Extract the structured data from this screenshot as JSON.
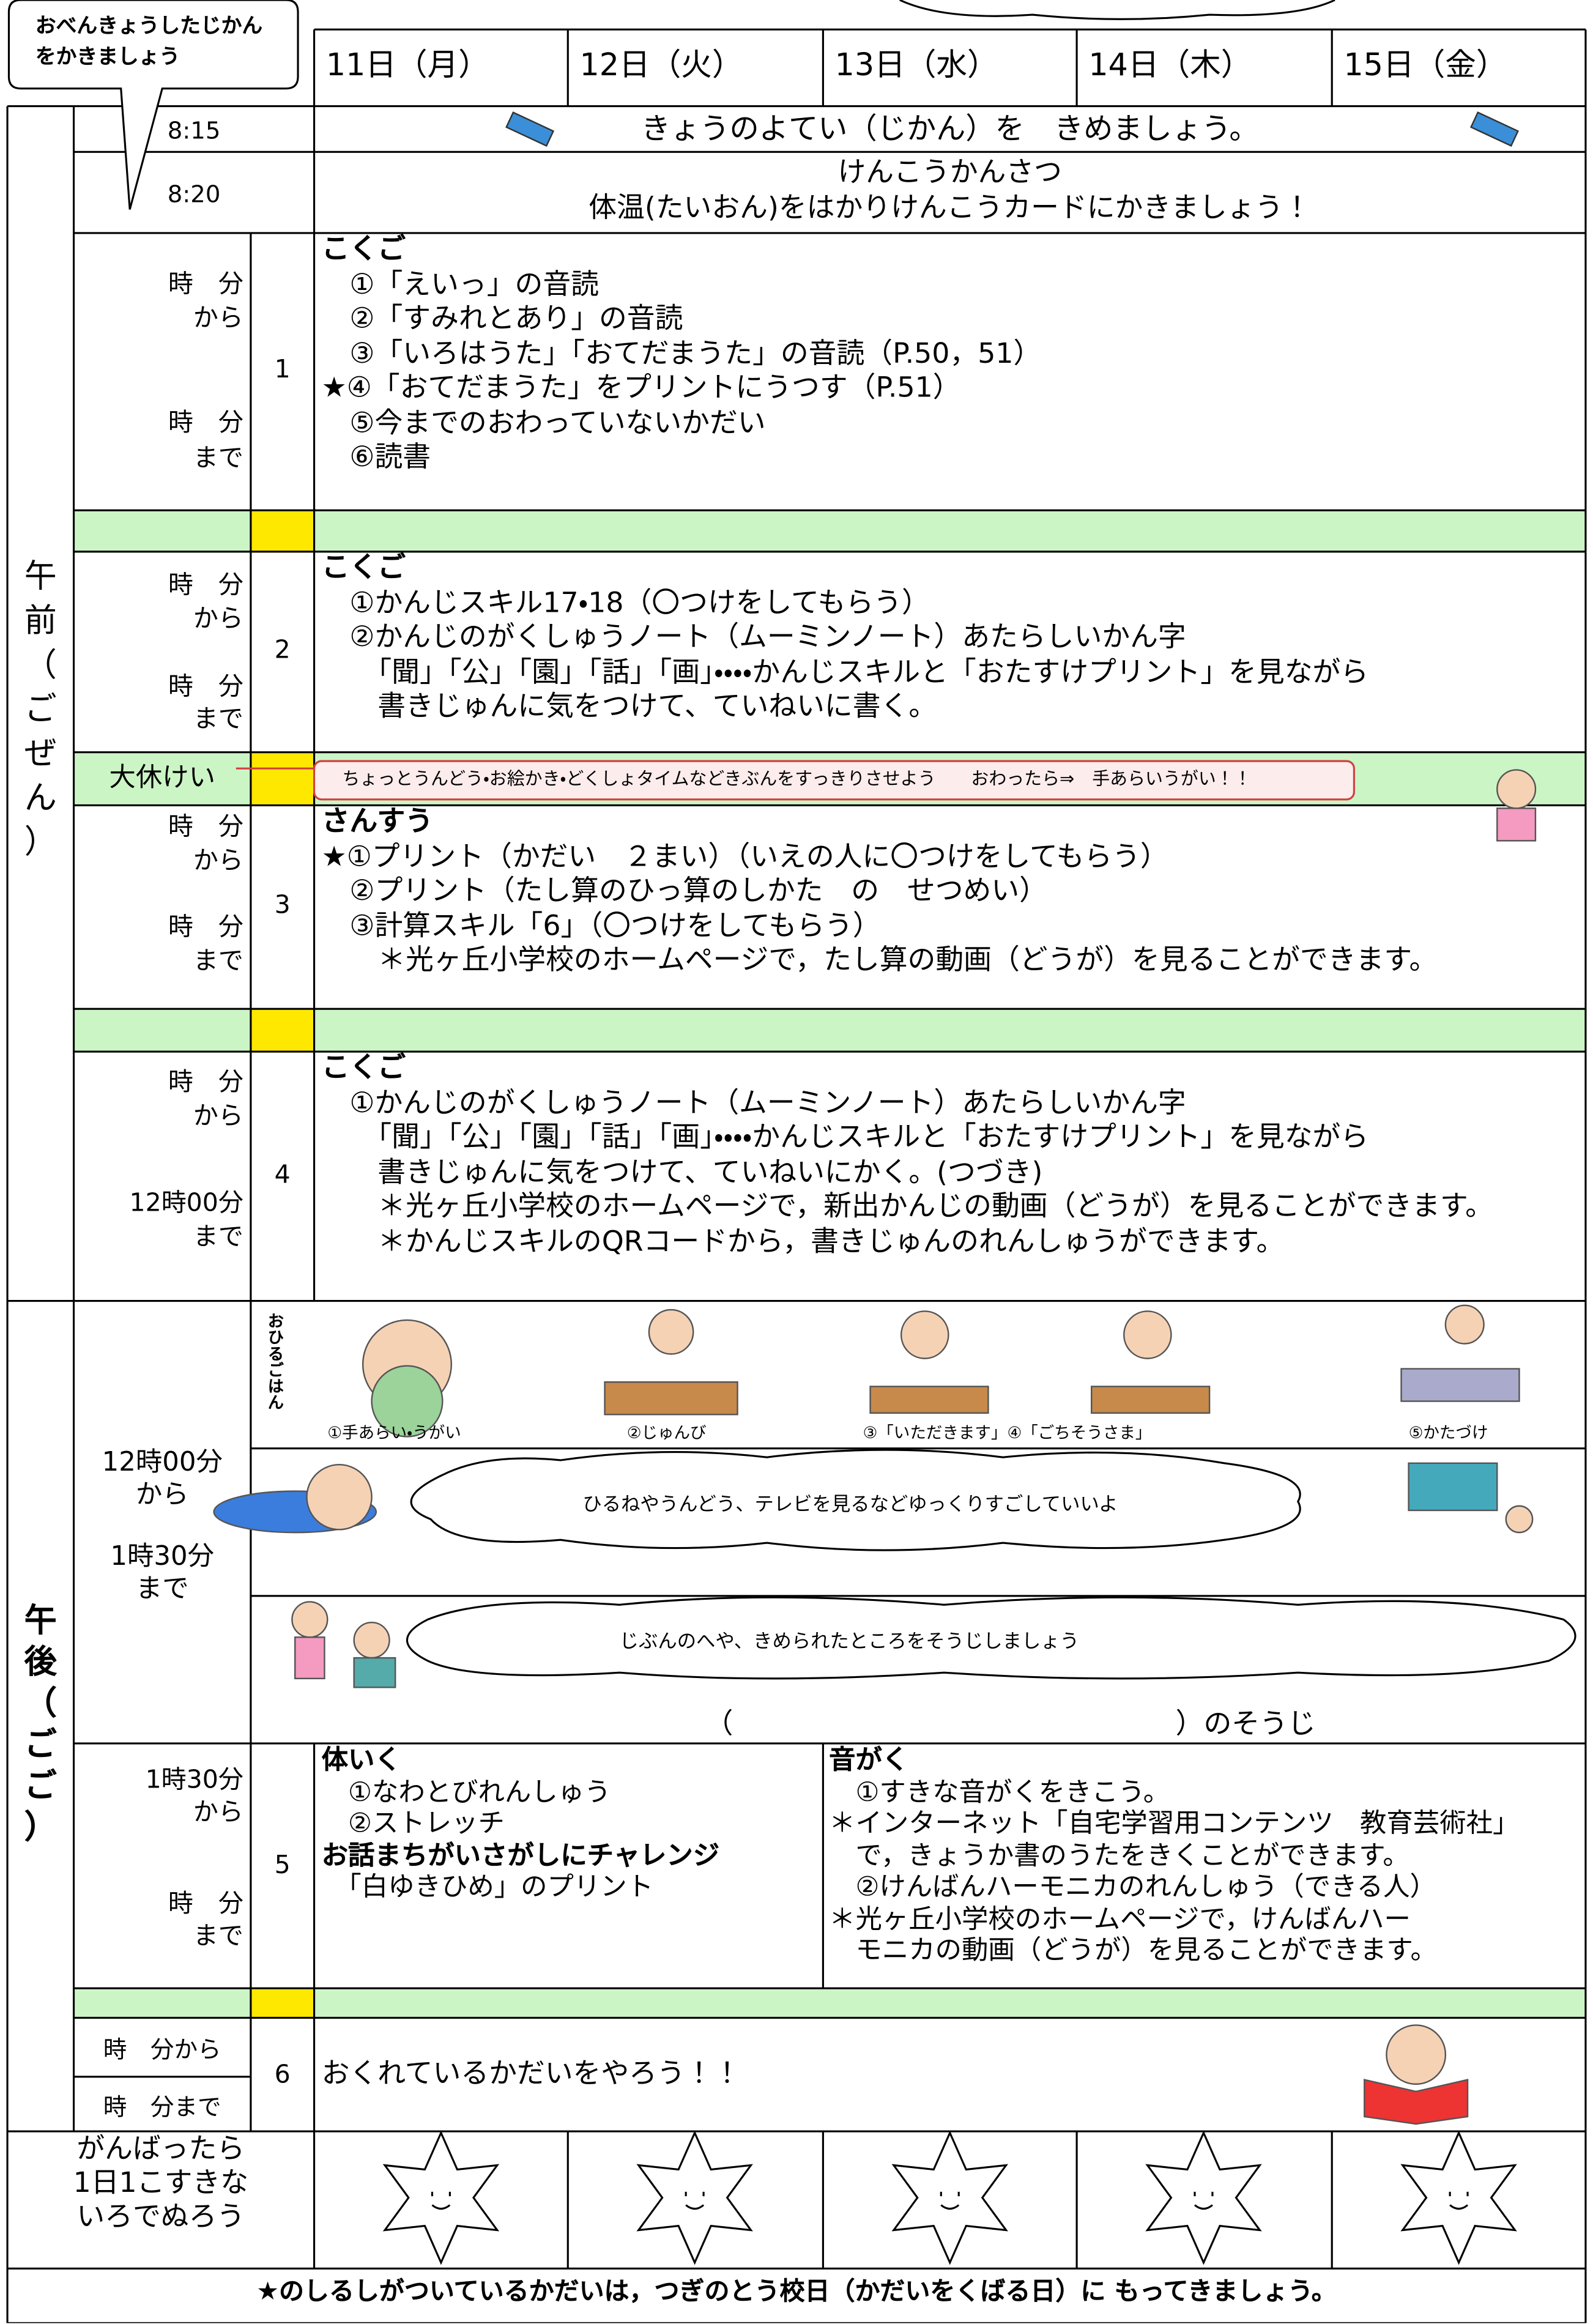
{
  "header": {
    "note": [
      "おべんきょうしたじかん",
      "をかきましょう"
    ],
    "days": [
      "11日（月）",
      "12日（火）",
      "13日（水）",
      "14日（木）",
      "15日（金）"
    ]
  },
  "morning": {
    "label": [
      "午",
      "前",
      "（",
      "ご",
      "ぜ",
      "ん",
      "）"
    ],
    "row1": {
      "time": "8:15",
      "text": "きょうのよてい（じかん）を　きめましょう。"
    },
    "row2": {
      "time": "8:20",
      "lines": [
        "けんこうかんさつ",
        "体温(たいおん)をはかりけんこうカードにかきましょう！"
      ]
    }
  },
  "periods": [
    {
      "number": "1",
      "from_time": "時　分",
      "from": "から",
      "to_time": "時　分",
      "to": "まで",
      "subject": "こくご",
      "lines": [
        "　①「えいっ」の音読",
        "　②「すみれとあり」の音読",
        "　③「いろはうた」「おてだまうた」の音読（P.50，51）",
        "★④「おてだまうた」をプリントにうつす（P.51）",
        "　⑤今までのおわっていないかだい",
        "　⑥読書"
      ]
    },
    {
      "number": "2",
      "from_time": "時　分",
      "from": "から",
      "to_time": "時　分",
      "to": "まで",
      "subject": "こくご",
      "lines": [
        "　①かんじスキル17・18（〇つけをしてもらう）",
        "　②かんじのがくしゅうノート（ムーミンノート）あたらしいかん字",
        "　　「聞」「公」「園」「話」「画」・・・・かんじスキルと「おたすけプリント」を見ながら",
        "　　書きじゅんに気をつけて、ていねいに書く。"
      ]
    },
    {
      "number": "3",
      "from_time": "時　分",
      "from": "から",
      "to_time": "時　分",
      "to": "まで",
      "subject": "さんすう",
      "lines": [
        "★①プリント（かだい　２まい）（いえの人に〇つけをしてもらう）",
        "　②プリント（たし算のひっ算のしかた　の　せつめい）",
        "　③計算スキル「6」（〇つけをしてもらう）",
        "　　＊光ヶ丘小学校のホームページで，たし算の動画（どうが）を見ることができます。"
      ]
    },
    {
      "number": "4",
      "from_time": "時　分",
      "from": "から",
      "to_time": "12時00分",
      "to": "まで",
      "subject": "こくご",
      "lines": [
        "　①かんじのがくしゅうノート（ムーミンノート）あたらしいかん字",
        "　　「聞」「公」「園」「話」「画」・・・・かんじスキルと「おたすけプリント」を見ながら",
        "　　書きじゅんに気をつけて、ていねいにかく。(つづき)",
        "　　＊光ヶ丘小学校のホームページで，新出かんじの動画（どうが）を見ることができます。",
        "　　＊かんじスキルのQRコードから，書きじゅんのれんしゅうができます。"
      ]
    }
  ],
  "recess": {
    "label": "大休けい",
    "note": "ちょっとうんどう・お絵かき・どくしょタイムなどきぶんをすっきりさせよう　　おわったら⇒　手あらいうがい！！"
  },
  "afternoon": {
    "label": [
      "午",
      "後",
      "（",
      "ご",
      "ご",
      "）"
    ],
    "lunch": {
      "from_time": "12時00分",
      "from": "から",
      "to_time": "1時30分",
      "to": "まで",
      "vertical": "おひるごはん",
      "steps": [
        "①手あらい・うがい",
        "②じゅんび",
        "③「いただきます」④「ごちそうさま」",
        "⑤かたづけ"
      ],
      "rest": "ひるねやうんどう、テレビを見るなどゆっくりすごしていいよ",
      "cleaning": "じぶんのへや、きめられたところをそうじしましょう",
      "cleaning_open": "（",
      "cleaning_close": "）のそうじ"
    },
    "period5": {
      "number": "5",
      "from_time": "1時30分",
      "from": "から",
      "to_time": "時　分",
      "to": "まで",
      "left": {
        "subject": "体いく",
        "lines": [
          "　①なわとびれんしゅう",
          "　②ストレッチ"
        ],
        "subject2": "お話まちがいさがしにチャレンジ",
        "lines2": [
          "　「白ゆきひめ」のプリント"
        ]
      },
      "right": {
        "subject": "音がく",
        "lines": [
          "　①すきな音がくをきこう。",
          "＊インターネット「自宅学習用コンテンツ　教育芸術社」",
          "　で，きょうか書のうたをきくことができます。",
          "　②けんばんハーモニカのれんしゅう（できる人）",
          "＊光ヶ丘小学校のホームページで，けんばんハー",
          "　モニカの動画（どうが）を見ることができます。"
        ]
      }
    },
    "period6": {
      "number": "6",
      "from": "時　分から",
      "to": "時　分まで",
      "text": "おくれているかだいをやろう！！"
    }
  },
  "stars": {
    "label": [
      "がんばったら",
      "1日1こすきな",
      "いろでぬろう"
    ]
  },
  "footer": "★のしるしがついているかだいは，つぎのとう校日（かだいをくばる日）に もってきましょう。"
}
